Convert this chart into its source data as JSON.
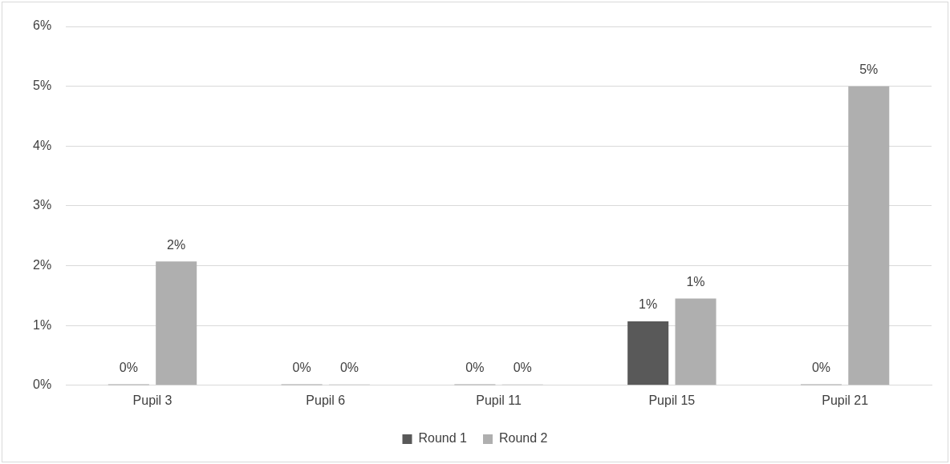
{
  "chart_data": {
    "type": "bar",
    "categories": [
      "Pupil 3",
      "Pupil 6",
      "Pupil 11",
      "Pupil 15",
      "Pupil 21"
    ],
    "series": [
      {
        "name": "Round 1",
        "color": "#595959",
        "values": [
          0,
          0,
          0,
          1.07,
          0
        ],
        "value_labels": [
          "0%",
          "0%",
          "0%",
          "1%",
          "0%"
        ]
      },
      {
        "name": "Round 2",
        "color": "#afafaf",
        "values": [
          2.07,
          0,
          0,
          1.45,
          5.0
        ],
        "value_labels": [
          "2%",
          "0%",
          "0%",
          "1%",
          "5%"
        ]
      }
    ],
    "ylim": [
      0,
      6
    ],
    "yticks": [
      {
        "value": 0,
        "label": "0%"
      },
      {
        "value": 1,
        "label": "1%"
      },
      {
        "value": 2,
        "label": "2%"
      },
      {
        "value": 3,
        "label": "3%"
      },
      {
        "value": 4,
        "label": "4%"
      },
      {
        "value": 5,
        "label": "5%"
      },
      {
        "value": 6,
        "label": "6%"
      }
    ],
    "grid": "y",
    "legend": "bottom"
  }
}
